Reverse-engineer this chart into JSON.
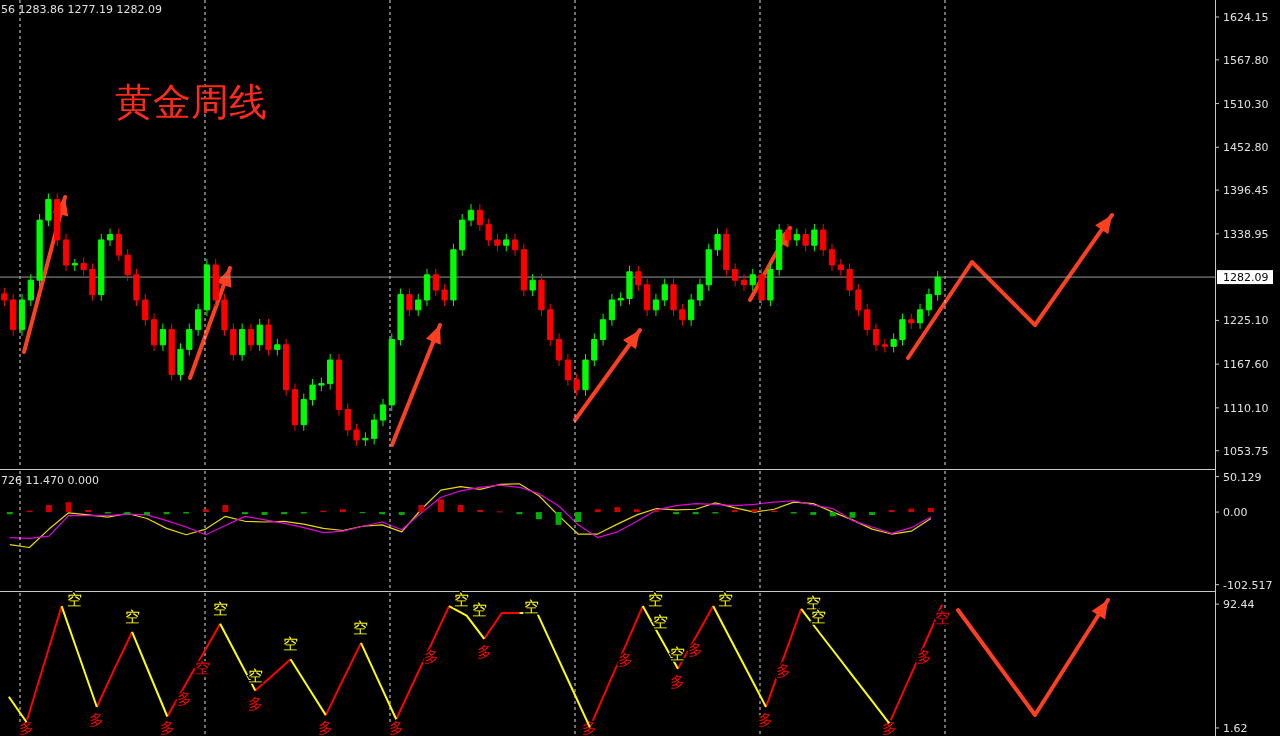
{
  "chart_data": [
    {
      "type": "candlestick",
      "title": "黄金周线",
      "annotations": [
        "56 1283.86 1277.19 1282.09"
      ],
      "categories": [
        null,
        null,
        null,
        null,
        null,
        null,
        null,
        null,
        null,
        null,
        null,
        null,
        null,
        null,
        null,
        null,
        null,
        null,
        null,
        null,
        null,
        null,
        null,
        null,
        null,
        null,
        null,
        null,
        null,
        null,
        null,
        null,
        null,
        null,
        null,
        null,
        null,
        null,
        null,
        null,
        null,
        null,
        null,
        null,
        null,
        null,
        null,
        null,
        null,
        null,
        null,
        null,
        null,
        null,
        null,
        null,
        null,
        null,
        null,
        null,
        null,
        null,
        null,
        null,
        null,
        null,
        null,
        null,
        null,
        null,
        null,
        null,
        null,
        null,
        null,
        null,
        null,
        null,
        null,
        null,
        null,
        null,
        null,
        null,
        null,
        null,
        null,
        null,
        null,
        null,
        null,
        null,
        null,
        null,
        null,
        null,
        null,
        null,
        null,
        null,
        null,
        null,
        null,
        null,
        null,
        null,
        null,
        null,
        null,
        null,
        null,
        null,
        null,
        null,
        null,
        null,
        null,
        null,
        null,
        null,
        null,
        null,
        null,
        null,
        null,
        null,
        null,
        null,
        null,
        null,
        null,
        null,
        null,
        null,
        null,
        null,
        null,
        null
      ],
      "ohlc": [
        [
          1260,
          1268,
          1244,
          1252
        ],
        [
          1252,
          1260,
          1205,
          1213
        ],
        [
          1213,
          1260,
          1205,
          1252
        ],
        [
          1252,
          1286,
          1244,
          1278
        ],
        [
          1278,
          1365,
          1270,
          1357
        ],
        [
          1357,
          1392,
          1349,
          1384
        ],
        [
          1384,
          1392,
          1323,
          1331
        ],
        [
          1331,
          1339,
          1290,
          1298
        ],
        [
          1298,
          1306,
          1290,
          1300
        ],
        [
          1300,
          1308,
          1284,
          1292
        ],
        [
          1292,
          1300,
          1251,
          1259
        ],
        [
          1259,
          1339,
          1251,
          1331
        ],
        [
          1331,
          1346,
          1323,
          1338
        ],
        [
          1338,
          1346,
          1303,
          1311
        ],
        [
          1311,
          1319,
          1277,
          1285
        ],
        [
          1285,
          1293,
          1244,
          1252
        ],
        [
          1252,
          1260,
          1218,
          1226
        ],
        [
          1226,
          1234,
          1185,
          1193
        ],
        [
          1193,
          1221,
          1185,
          1213
        ],
        [
          1213,
          1221,
          1146,
          1154
        ],
        [
          1154,
          1195,
          1146,
          1187
        ],
        [
          1187,
          1221,
          1179,
          1213
        ],
        [
          1213,
          1247,
          1205,
          1239
        ],
        [
          1239,
          1306,
          1231,
          1298
        ],
        [
          1298,
          1306,
          1244,
          1252
        ],
        [
          1252,
          1260,
          1205,
          1213
        ],
        [
          1213,
          1221,
          1172,
          1180
        ],
        [
          1180,
          1221,
          1172,
          1213
        ],
        [
          1213,
          1221,
          1185,
          1193
        ],
        [
          1193,
          1227,
          1185,
          1219
        ],
        [
          1219,
          1227,
          1179,
          1187
        ],
        [
          1187,
          1201,
          1179,
          1193
        ],
        [
          1193,
          1201,
          1126,
          1134
        ],
        [
          1134,
          1142,
          1080,
          1088
        ],
        [
          1088,
          1129,
          1080,
          1121
        ],
        [
          1121,
          1148,
          1113,
          1140
        ],
        [
          1140,
          1150,
          1132,
          1142
        ],
        [
          1142,
          1181,
          1134,
          1173
        ],
        [
          1173,
          1181,
          1100,
          1108
        ],
        [
          1108,
          1116,
          1073,
          1081
        ],
        [
          1081,
          1089,
          1060,
          1068
        ],
        [
          1068,
          1078,
          1060,
          1070
        ],
        [
          1070,
          1102,
          1062,
          1094
        ],
        [
          1094,
          1122,
          1086,
          1114
        ],
        [
          1114,
          1208,
          1106,
          1200
        ],
        [
          1200,
          1267,
          1192,
          1259
        ],
        [
          1259,
          1267,
          1231,
          1239
        ],
        [
          1239,
          1260,
          1231,
          1252
        ],
        [
          1252,
          1293,
          1244,
          1285
        ],
        [
          1285,
          1293,
          1257,
          1265
        ],
        [
          1265,
          1273,
          1244,
          1252
        ],
        [
          1252,
          1326,
          1244,
          1318
        ],
        [
          1318,
          1365,
          1310,
          1357
        ],
        [
          1357,
          1378,
          1349,
          1370
        ],
        [
          1370,
          1378,
          1343,
          1351
        ],
        [
          1351,
          1359,
          1323,
          1331
        ],
        [
          1331,
          1339,
          1316,
          1324
        ],
        [
          1324,
          1339,
          1316,
          1331
        ],
        [
          1331,
          1339,
          1310,
          1318
        ],
        [
          1318,
          1326,
          1257,
          1265
        ],
        [
          1265,
          1286,
          1257,
          1278
        ],
        [
          1278,
          1286,
          1231,
          1239
        ],
        [
          1239,
          1247,
          1192,
          1200
        ],
        [
          1200,
          1208,
          1165,
          1173
        ],
        [
          1173,
          1181,
          1139,
          1147
        ],
        [
          1147,
          1155,
          1126,
          1134
        ],
        [
          1134,
          1181,
          1126,
          1173
        ],
        [
          1173,
          1208,
          1165,
          1200
        ],
        [
          1200,
          1234,
          1192,
          1226
        ],
        [
          1226,
          1260,
          1218,
          1252
        ],
        [
          1252,
          1262,
          1244,
          1254
        ],
        [
          1254,
          1297,
          1246,
          1289
        ],
        [
          1289,
          1297,
          1264,
          1272
        ],
        [
          1272,
          1280,
          1231,
          1239
        ],
        [
          1239,
          1260,
          1231,
          1252
        ],
        [
          1252,
          1280,
          1244,
          1272
        ],
        [
          1272,
          1280,
          1231,
          1239
        ],
        [
          1239,
          1247,
          1218,
          1226
        ],
        [
          1226,
          1260,
          1218,
          1252
        ],
        [
          1252,
          1280,
          1244,
          1272
        ],
        [
          1272,
          1326,
          1264,
          1318
        ],
        [
          1318,
          1346,
          1310,
          1338
        ],
        [
          1338,
          1346,
          1284,
          1292
        ],
        [
          1292,
          1300,
          1270,
          1278
        ],
        [
          1278,
          1286,
          1264,
          1272
        ],
        [
          1272,
          1293,
          1264,
          1285
        ],
        [
          1285,
          1293,
          1244,
          1252
        ],
        [
          1252,
          1300,
          1244,
          1292
        ],
        [
          1292,
          1352,
          1284,
          1344
        ],
        [
          1344,
          1352,
          1323,
          1331
        ],
        [
          1331,
          1346,
          1323,
          1338
        ],
        [
          1338,
          1346,
          1316,
          1324
        ],
        [
          1324,
          1352,
          1316,
          1344
        ],
        [
          1344,
          1352,
          1310,
          1318
        ],
        [
          1318,
          1326,
          1290,
          1298
        ],
        [
          1298,
          1306,
          1284,
          1292
        ],
        [
          1292,
          1300,
          1257,
          1265
        ],
        [
          1265,
          1273,
          1231,
          1239
        ],
        [
          1239,
          1247,
          1205,
          1213
        ],
        [
          1213,
          1221,
          1185,
          1193
        ],
        [
          1193,
          1201,
          1183,
          1191
        ],
        [
          1191,
          1208,
          1183,
          1200
        ],
        [
          1200,
          1234,
          1192,
          1226
        ],
        [
          1226,
          1234,
          1214,
          1222
        ],
        [
          1222,
          1247,
          1214,
          1239
        ],
        [
          1239,
          1267,
          1231,
          1259
        ],
        [
          1259,
          1290,
          1251,
          1282
        ],
        null,
        null,
        null,
        null,
        null,
        null,
        null,
        null,
        null,
        null,
        null,
        null,
        null,
        null,
        null,
        null,
        null,
        null,
        null,
        null,
        null,
        null,
        null,
        null,
        null,
        null,
        null,
        null,
        null,
        null,
        null
      ],
      "colors": [
        "#ff0000",
        "#ff0000",
        "#00ff00",
        "#00ff00",
        "#00ff00",
        "#00ff00",
        "#ff0000",
        "#ff0000",
        "#00ff00",
        "#ff0000",
        "#ff0000",
        "#00ff00",
        "#00ff00",
        "#ff0000",
        "#ff0000",
        "#ff0000",
        "#ff0000",
        "#ff0000",
        "#00ff00",
        "#ff0000",
        "#00ff00",
        "#00ff00",
        "#00ff00",
        "#00ff00",
        "#ff0000",
        "#ff0000",
        "#ff0000",
        "#00ff00",
        "#ff0000",
        "#00ff00",
        "#ff0000",
        "#00ff00",
        "#ff0000",
        "#ff0000",
        "#00ff00",
        "#00ff00",
        "#00ff00",
        "#00ff00",
        "#ff0000",
        "#ff0000",
        "#ff0000",
        "#00ff00",
        "#00ff00",
        "#00ff00",
        "#00ff00",
        "#00ff00",
        "#ff0000",
        "#00ff00",
        "#00ff00",
        "#ff0000",
        "#ff0000",
        "#00ff00",
        "#00ff00",
        "#00ff00",
        "#ff0000",
        "#ff0000",
        "#ff0000",
        "#00ff00",
        "#ff0000",
        "#ff0000",
        "#00ff00",
        "#ff0000",
        "#ff0000",
        "#ff0000",
        "#ff0000",
        "#ff0000",
        "#00ff00",
        "#00ff00",
        "#00ff00",
        "#00ff00",
        "#00ff00",
        "#00ff00",
        "#ff0000",
        "#ff0000",
        "#00ff00",
        "#00ff00",
        "#ff0000",
        "#ff0000",
        "#00ff00",
        "#00ff00",
        "#00ff00",
        "#00ff00",
        "#ff0000",
        "#ff0000",
        "#ff0000",
        "#00ff00",
        "#ff0000",
        "#00ff00",
        "#00ff00",
        "#ff0000",
        "#00ff00",
        "#ff0000",
        "#00ff00",
        "#ff0000",
        "#ff0000",
        "#ff0000",
        "#ff0000",
        "#ff0000",
        "#ff0000",
        "#ff0000",
        "#ff0000",
        "#00ff00",
        "#00ff00",
        "#ff0000",
        "#00ff00",
        "#00ff00",
        "#00ff00",
        null,
        null,
        null,
        null,
        null,
        null,
        null,
        null,
        null,
        null,
        null,
        null,
        null,
        null,
        null,
        null,
        null,
        null,
        null,
        null,
        null,
        null,
        null,
        null,
        null,
        null,
        null,
        null,
        null,
        null,
        null
      ],
      "ylim": [
        1031,
        1646.5
      ],
      "yticks": [
        1624.15,
        {
          "value": 1567.8,
          "label": "1567.80"
        },
        {
          "value": 1510.3,
          "label": "1510.30"
        },
        {
          "value": 1452.8,
          "label": "1452.80"
        },
        1396.45,
        1338.95,
        {
          "value": 1225.1,
          "label": "1225.10"
        },
        {
          "value": 1167.6,
          "label": "1167.60"
        },
        {
          "value": 1110.1,
          "label": "1110.10"
        },
        1053.75
      ],
      "grid": "x",
      "tick_labels": "y",
      "ref_lines": [
        {
          "axis": "y",
          "value": 1282.09,
          "label": "1282.09",
          "color": "#9a9a9a"
        }
      ]
    },
    {
      "type": "bar",
      "annotations": [
        "726 11.470 0.000"
      ],
      "categories": [
        null,
        null,
        null,
        null,
        null,
        null,
        null,
        null,
        null,
        null,
        null,
        null,
        null,
        null,
        null,
        null,
        null,
        null,
        null,
        null,
        null,
        null,
        null,
        null,
        null,
        null,
        null,
        null,
        null,
        null,
        null,
        null,
        null,
        null,
        null,
        null,
        null,
        null,
        null,
        null,
        null,
        null,
        null,
        null,
        null,
        null,
        null,
        null,
        null,
        null,
        null,
        null,
        null,
        null,
        null,
        null,
        null,
        null,
        null,
        null,
        null,
        null
      ],
      "values": [
        -3,
        2,
        10,
        14,
        3,
        -2,
        -3,
        -4,
        -3,
        -2,
        4,
        10,
        -3,
        -4,
        -3,
        -2,
        2,
        4,
        -1,
        -3,
        -4,
        10,
        18,
        10,
        3,
        1,
        -3,
        -10,
        -18,
        -14,
        4,
        7,
        4,
        2,
        -3,
        -3,
        -2,
        3,
        4,
        2,
        -2,
        -4,
        -6,
        -8,
        -4,
        3,
        5,
        6,
        null,
        null,
        null,
        null,
        null,
        null,
        null,
        null,
        null,
        null,
        null,
        null,
        null,
        null
      ],
      "colors": [
        "#00b000",
        "#d00000",
        "#d00000",
        "#d00000",
        "#d00000",
        "#00b000",
        "#00b000",
        "#00b000",
        "#00b000",
        "#00b000",
        "#d00000",
        "#d00000",
        "#00b000",
        "#00b000",
        "#00b000",
        "#00b000",
        "#d00000",
        "#d00000",
        "#00b000",
        "#00b000",
        "#00b000",
        "#d00000",
        "#d00000",
        "#d00000",
        "#d00000",
        "#d00000",
        "#00b000",
        "#00b000",
        "#00b000",
        "#00b000",
        "#d00000",
        "#d00000",
        "#d00000",
        "#d00000",
        "#00b000",
        "#00b000",
        "#00b000",
        "#d00000",
        "#d00000",
        "#d00000",
        "#00b000",
        "#00b000",
        "#00b000",
        "#00b000",
        "#00b000",
        "#d00000",
        "#d00000",
        "#d00000",
        null,
        null,
        null,
        null,
        null,
        null,
        null,
        null,
        null,
        null,
        null,
        null,
        null,
        null
      ],
      "ylim": [
        -110,
        58
      ],
      "yticks": [
        50.129,
        {
          "value": 0,
          "label": "0.00"
        },
        -102.517
      ],
      "grid": "x",
      "tick_labels": "y"
    },
    {
      "type": "line",
      "categories": [
        null,
        null,
        null,
        null,
        null,
        null,
        null,
        null,
        null,
        null,
        null,
        null,
        null,
        null,
        null,
        null,
        null,
        null,
        null,
        null,
        null,
        null,
        null,
        null,
        null,
        null,
        null,
        null,
        null,
        null,
        null,
        null,
        null,
        null,
        null,
        null,
        null,
        null,
        null,
        null,
        null,
        null,
        null,
        null,
        null,
        null,
        null,
        null,
        null,
        null,
        null,
        null,
        null,
        null,
        null,
        null,
        null,
        null,
        null,
        null,
        null,
        null
      ],
      "series": [
        {
          "color": "#e8d800",
          "values": [
            -46,
            -50,
            -24,
            -1,
            -4,
            -7,
            -2,
            -9,
            -23,
            -32,
            -24,
            -6,
            -13,
            -14,
            -13,
            -17,
            -23,
            -26,
            -20,
            -18,
            -28,
            4,
            31,
            36,
            32,
            39,
            40,
            23,
            -5,
            -31,
            -31,
            -17,
            -4,
            5,
            3,
            4,
            13,
            6,
            0,
            4,
            14,
            12,
            0,
            -11,
            -24,
            -31,
            -27,
            -9,
            null,
            null,
            null,
            null,
            null,
            null,
            null,
            null,
            null,
            null,
            null,
            null,
            null,
            null
          ]
        },
        {
          "color": "#e000e0",
          "values": [
            -36,
            -37,
            -34,
            -5,
            -5,
            -5,
            -3,
            -4,
            -12,
            -21,
            -32,
            -19,
            -6,
            -11,
            -16,
            -22,
            -29,
            -27,
            -20,
            -14,
            -25,
            -1,
            21,
            30,
            35,
            38,
            35,
            26,
            9,
            -18,
            -36,
            -28,
            -13,
            3,
            9,
            12,
            11,
            9,
            11,
            14,
            16,
            10,
            5,
            -12,
            -21,
            -30,
            -22,
            -7,
            null,
            null,
            null,
            null,
            null,
            null,
            null,
            null,
            null,
            null,
            null,
            null,
            null,
            null
          ]
        }
      ],
      "ylim": [
        -110,
        58
      ],
      "tick_labels": false
    },
    {
      "type": "line",
      "categories": [
        null,
        null,
        null,
        null,
        null,
        null,
        null,
        null,
        null,
        null,
        null,
        null,
        null,
        null,
        null,
        null,
        null,
        null,
        null,
        null,
        null,
        null,
        null,
        null,
        null,
        null,
        null,
        null,
        null,
        null,
        null,
        null,
        null,
        null,
        null,
        null,
        null,
        null,
        null,
        null,
        null,
        null,
        null,
        null,
        null,
        null,
        null,
        null,
        null,
        null,
        null,
        null,
        null,
        null,
        null,
        null,
        null,
        null,
        null,
        null,
        null,
        null,
        null,
        null,
        null,
        null,
        null,
        null,
        null
      ],
      "series": [
        {
          "color": "#ff0000",
          "values": [
            null,
            6,
            48.5,
            91,
            null,
            17,
            45,
            72,
            null,
            10,
            32.7,
            55.3,
            78,
            null,
            29,
            40.5,
            52,
            null,
            11,
            37.5,
            64,
            null,
            8,
            35.7,
            63.3,
            91,
            null,
            67,
            86,
            86,
            null,
            null,
            null,
            2,
            31.7,
            61.3,
            91,
            null,
            45,
            68,
            91,
            null,
            null,
            17,
            53,
            89,
            null,
            null,
            null,
            null,
            5,
            34,
            63,
            92,
            null,
            null,
            null,
            null,
            null,
            null,
            null,
            null,
            null,
            null,
            null,
            null,
            null,
            null,
            null
          ],
          "value_labels": [
            null,
            "多",
            null,
            null,
            null,
            "多",
            null,
            null,
            null,
            "多",
            "多",
            "空",
            null,
            null,
            "多",
            null,
            null,
            null,
            "多",
            null,
            null,
            null,
            "多",
            null,
            "多",
            null,
            null,
            "多",
            null,
            null,
            null,
            null,
            null,
            "多",
            null,
            "多",
            null,
            null,
            "多",
            "多",
            null,
            null,
            null,
            "多",
            "多",
            null,
            null,
            null,
            null,
            null,
            "多",
            null,
            "多",
            "空",
            null,
            null,
            null,
            null,
            null,
            null,
            null,
            null,
            null,
            null,
            null,
            null,
            null,
            null,
            null
          ]
        },
        {
          "color": "#ffff00",
          "values": [
            24.5,
            6,
            null,
            91,
            54,
            17,
            null,
            72,
            41,
            10,
            null,
            null,
            78,
            53.5,
            29,
            null,
            52,
            31.5,
            11,
            null,
            64,
            36,
            8,
            null,
            null,
            91,
            84,
            67,
            null,
            86,
            86,
            58,
            30,
            2,
            null,
            null,
            91,
            68,
            45,
            null,
            91,
            66.3,
            41.7,
            17,
            null,
            89,
            72,
            55.3,
            38.5,
            21.8,
            5,
            null,
            null,
            null,
            null,
            null,
            null,
            null,
            null,
            null,
            null,
            null,
            null,
            null,
            null,
            null,
            null,
            null,
            null
          ],
          "value_labels": [
            null,
            null,
            null,
            "空",
            null,
            null,
            null,
            "空",
            null,
            null,
            null,
            null,
            "空",
            null,
            "空",
            null,
            "空",
            null,
            null,
            null,
            "空",
            null,
            null,
            null,
            null,
            "空",
            "空",
            null,
            null,
            "空",
            null,
            null,
            null,
            null,
            null,
            null,
            "空",
            "空",
            "空",
            null,
            "空",
            null,
            null,
            null,
            null,
            "空",
            "空",
            null,
            null,
            null,
            null,
            null,
            null,
            null,
            null,
            null,
            null,
            null,
            null,
            null,
            null,
            null,
            null,
            null,
            null,
            null,
            null,
            null,
            null
          ]
        }
      ],
      "ylim": [
        -4.3,
        100.6
      ],
      "yticks": [
        92.44,
        1.62
      ],
      "grid": "x",
      "tick_labels": "y"
    }
  ]
}
